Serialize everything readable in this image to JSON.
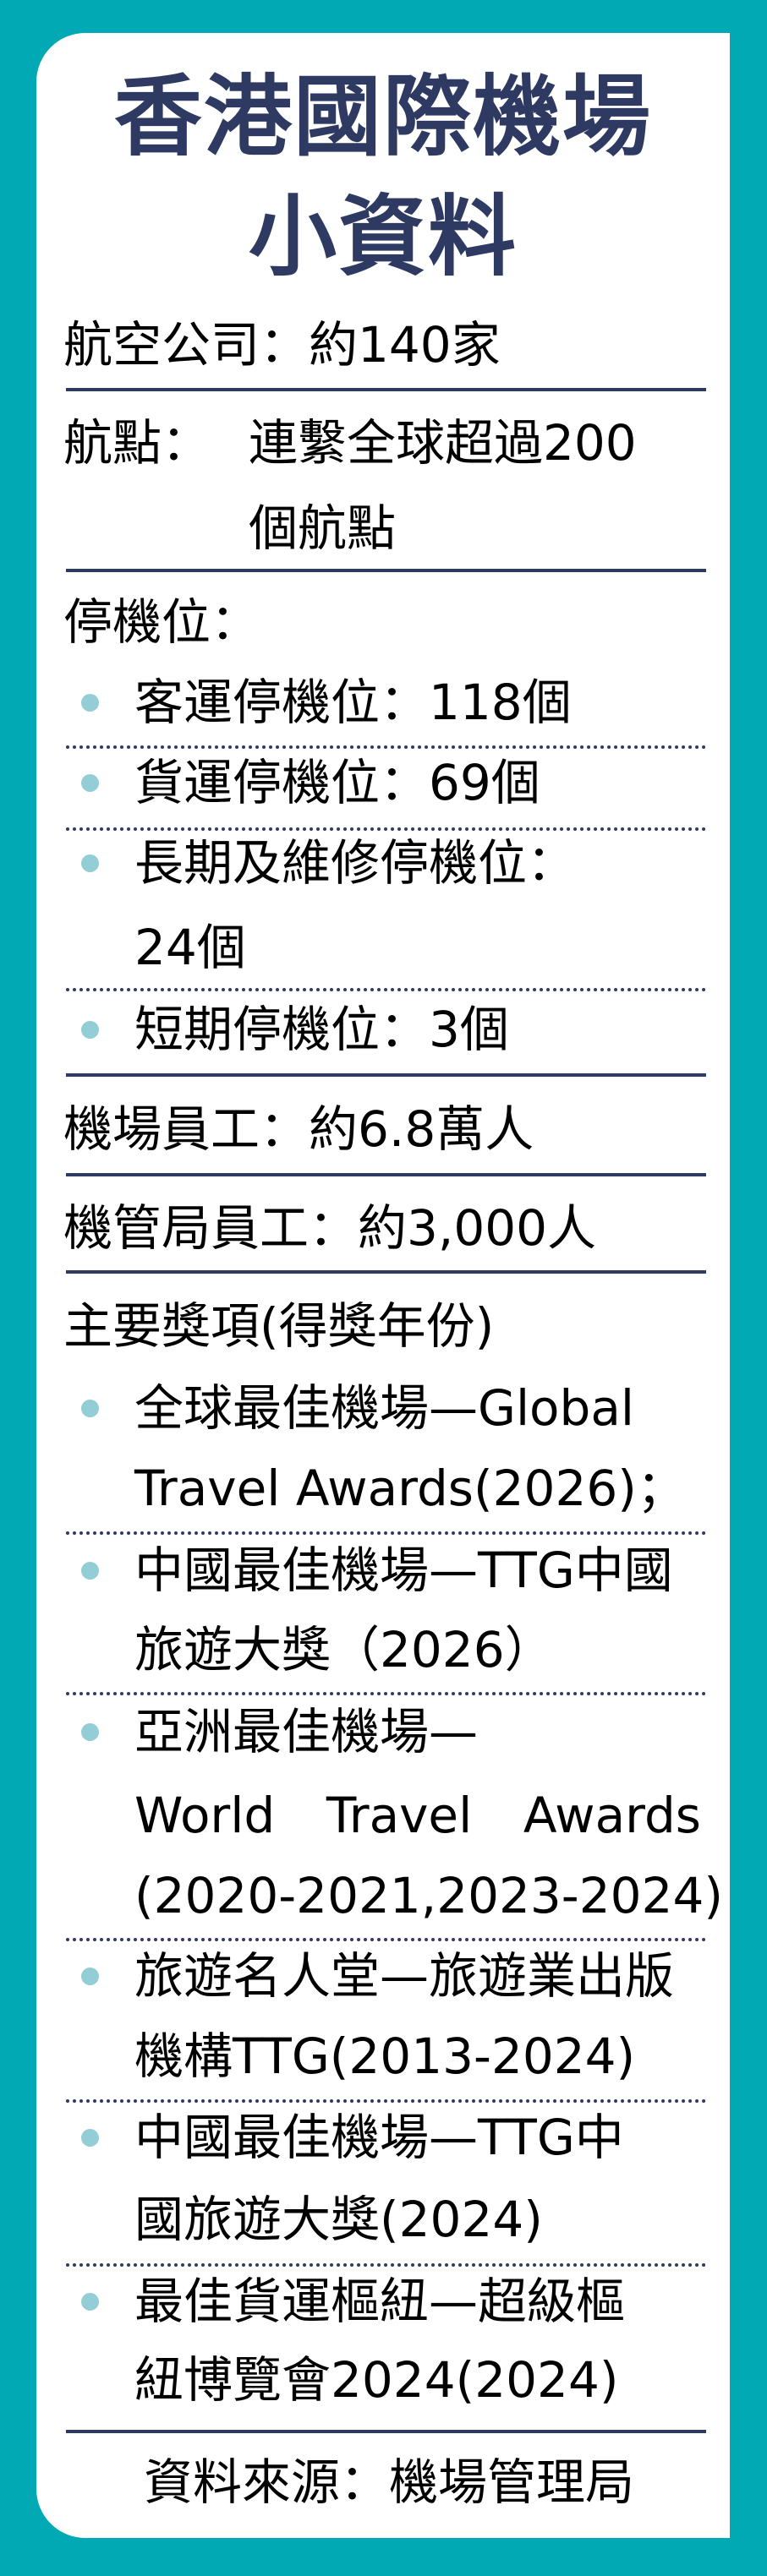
{
  "title": {
    "line1": "香港國際機場",
    "line2": "小資料"
  },
  "colors": {
    "background": "#00a9b4",
    "title": "#2f3a63",
    "divider": "#2f3a63",
    "bullet": "#93cdd6"
  },
  "airlines": "航空公司：約140家",
  "destinations": {
    "label": "航點：",
    "line1": "連繫全球超過200",
    "line2": "個航點"
  },
  "stands": {
    "heading": "停機位：",
    "items": [
      {
        "lines": [
          "客運停機位：118個"
        ]
      },
      {
        "lines": [
          "貨運停機位：69個"
        ]
      },
      {
        "lines": [
          "長期及維修停機位：",
          "24個"
        ]
      },
      {
        "lines": [
          "短期停機位：3個"
        ]
      }
    ]
  },
  "airport_staff": "機場員工：約6.8萬人",
  "authority_staff": "機管局員工：約3,000人",
  "awards": {
    "heading": "主要獎項(得獎年份)",
    "items": [
      {
        "lines": [
          "全球最佳機場—Global",
          "Travel Awards(2026)；"
        ]
      },
      {
        "lines": [
          "中國最佳機場—TTG中國",
          "旅遊大獎（2026）"
        ]
      },
      {
        "lines": [
          "亞洲最佳機場—",
          "World Travel Awards",
          "(2020-2021,2023-2024)"
        ]
      },
      {
        "lines": [
          "旅遊名人堂—旅遊業出版",
          "機構TTG(2013-2024)"
        ]
      },
      {
        "lines": [
          "中國最佳機場—TTG中",
          "國旅遊大獎(2024)"
        ]
      },
      {
        "lines": [
          "最佳貨運樞紐—超級樞",
          "紐博覽會2024(2024)"
        ]
      }
    ]
  },
  "source": "資料來源：機場管理局"
}
